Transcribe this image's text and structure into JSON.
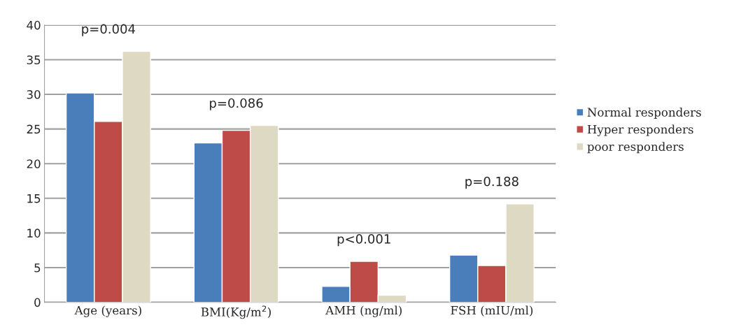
{
  "chart_data": {
    "type": "bar",
    "categories": [
      "Age (years)",
      "BMI(Kg/m$^{2}$)",
      "AMH (ng/ml)",
      "FSH (mIU/ml)"
    ],
    "series": [
      {
        "name": "Normal responders",
        "color": "#4a7ebb",
        "values": [
          30.2,
          23.0,
          2.3,
          6.8
        ]
      },
      {
        "name": "Hyper responders",
        "color": "#be4b48",
        "values": [
          26.1,
          24.8,
          5.9,
          5.3
        ]
      },
      {
        "name": "poor responders",
        "color": "#ddd9c3",
        "values": [
          36.2,
          25.5,
          1.0,
          14.2
        ]
      }
    ],
    "annotations": [
      "p=0.004",
      "p=0.086",
      "p<0.001",
      "p=0.188"
    ],
    "ylim": [
      0,
      40
    ],
    "yticks": [
      0,
      5,
      10,
      15,
      20,
      25,
      30,
      35,
      40
    ],
    "grid": "y",
    "legend": "right"
  }
}
